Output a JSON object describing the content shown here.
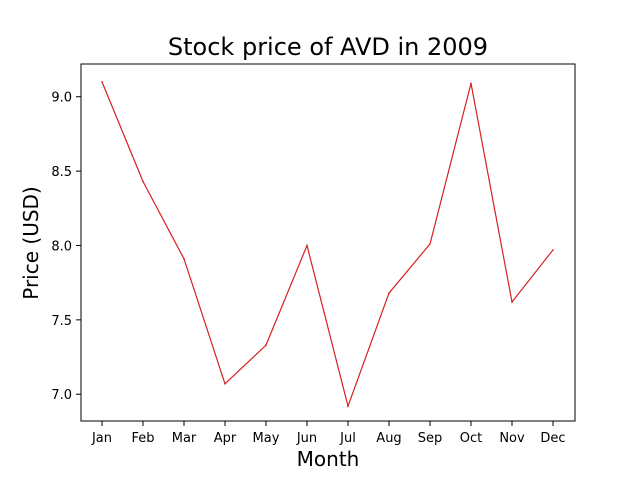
{
  "chart_data": {
    "type": "line",
    "title": "Stock price of AVD in 2009",
    "xlabel": "Month",
    "ylabel": "Price (USD)",
    "categories": [
      "Jan",
      "Feb",
      "Mar",
      "Apr",
      "May",
      "Jun",
      "Jul",
      "Aug",
      "Sep",
      "Oct",
      "Nov",
      "Dec"
    ],
    "series": [
      {
        "color": "#d62020",
        "values": [
          9.1,
          8.43,
          7.91,
          7.07,
          7.33,
          8.0,
          6.92,
          7.68,
          8.01,
          9.09,
          7.62,
          7.97
        ]
      }
    ],
    "ylim": [
      6.82,
      9.22
    ],
    "yticks": [
      7.0,
      7.5,
      8.0,
      8.5,
      9.0
    ],
    "ytick_labels": [
      "7.0",
      "7.5",
      "8.0",
      "8.5",
      "9.0"
    ],
    "grid": false,
    "legend": "none"
  }
}
